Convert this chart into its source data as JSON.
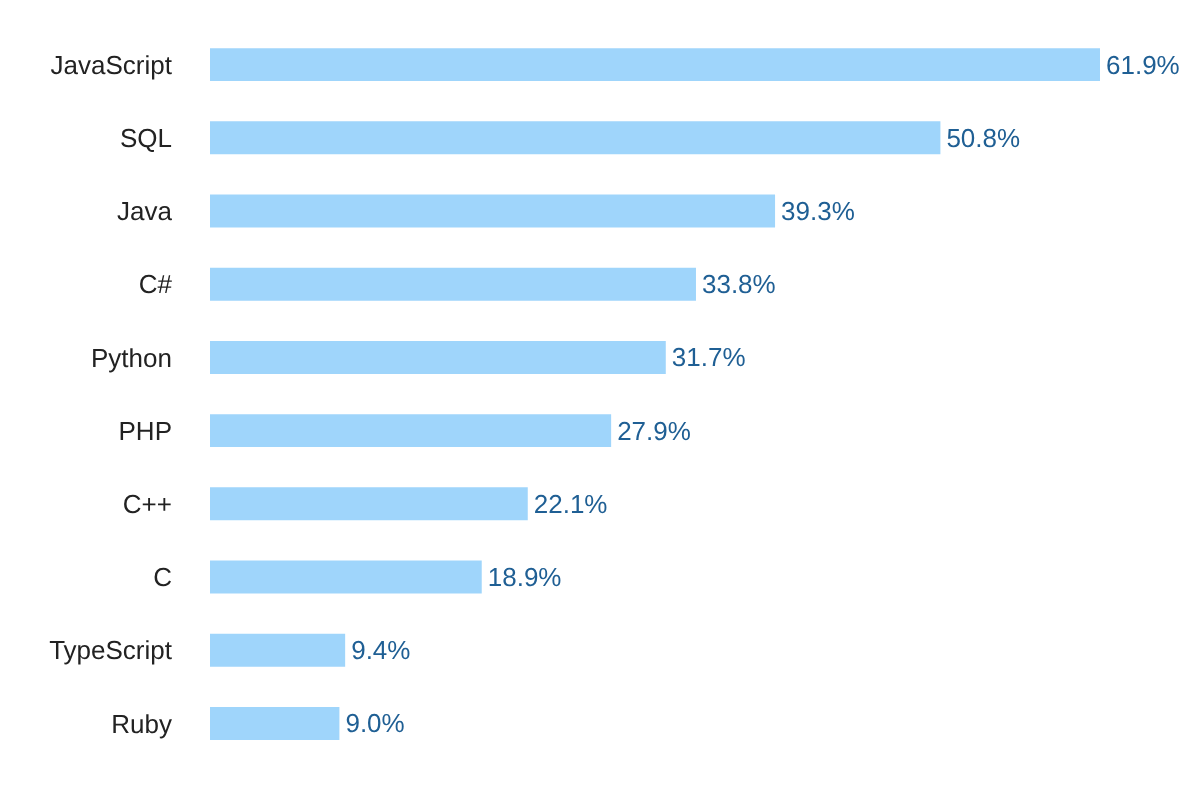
{
  "chart_data": {
    "type": "bar",
    "orientation": "horizontal",
    "categories": [
      "JavaScript",
      "SQL",
      "Java",
      "C#",
      "Python",
      "PHP",
      "C++",
      "C",
      "TypeScript",
      "Ruby"
    ],
    "values": [
      61.9,
      50.8,
      39.3,
      33.8,
      31.7,
      27.9,
      22.1,
      18.9,
      9.4,
      9.0
    ],
    "value_labels": [
      "61.9%",
      "50.8%",
      "39.3%",
      "33.8%",
      "31.7%",
      "27.9%",
      "22.1%",
      "18.9%",
      "9.4%",
      "9.0%"
    ],
    "color": "#9fd5fb"
  }
}
